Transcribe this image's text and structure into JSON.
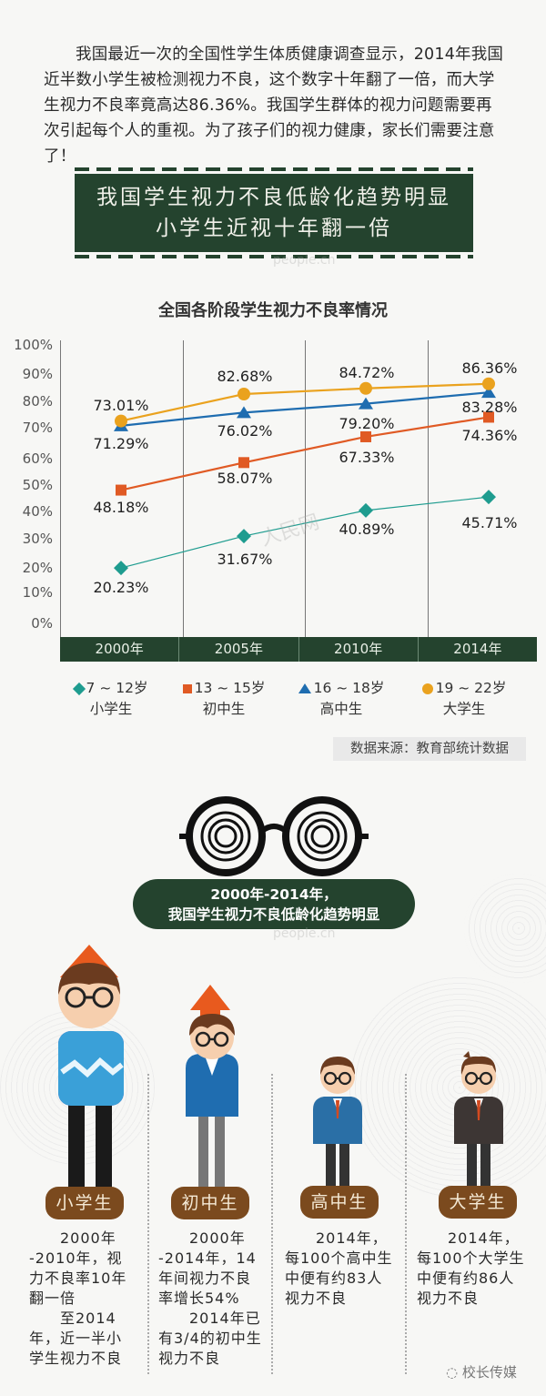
{
  "intro": {
    "text": "我国最近一次的全国性学生体质健康调查显示，2014年我国近半数小学生被检测视力不良，这个数字十年翻了一倍，而大学生视力不良率竟高达86.36%。我国学生群体的视力问题需要再次引起每个人的重视。为了孩子们的视力健康，家长们需要注意了！"
  },
  "banner": {
    "line1": "我国学生视力不良低龄化趋势明显",
    "line2": "小学生近视十年翻一倍"
  },
  "chart_data": {
    "type": "line",
    "title": "全国各阶段学生视力不良率情况",
    "xlabel": "",
    "ylabel": "",
    "categories": [
      "2000年",
      "2005年",
      "2010年",
      "2014年"
    ],
    "y_ticks": [
      "100%",
      "90%",
      "80%",
      "70%",
      "60%",
      "50%",
      "40%",
      "30%",
      "20%",
      "10%",
      "0%"
    ],
    "ylim": [
      0,
      100
    ],
    "grid": "vertical lines between years",
    "legend_position": "bottom",
    "series": [
      {
        "name": "7~12岁 小学生",
        "marker": "diamond",
        "color": "#1e9c8f",
        "values": [
          20.23,
          31.67,
          40.89,
          45.71
        ],
        "labels": [
          "20.23%",
          "31.67%",
          "40.89%",
          "45.71%"
        ]
      },
      {
        "name": "13~15岁 初中生",
        "marker": "square",
        "color": "#e05a24",
        "values": [
          48.18,
          58.07,
          67.33,
          74.36
        ],
        "labels": [
          "48.18%",
          "58.07%",
          "67.33%",
          "74.36%"
        ]
      },
      {
        "name": "16~18岁 高中生",
        "marker": "triangle",
        "color": "#1f6db0",
        "values": [
          71.29,
          76.02,
          79.2,
          83.28
        ],
        "labels": [
          "71.29%",
          "76.02%",
          "79.20%",
          "83.28%"
        ]
      },
      {
        "name": "19~22岁 大学生",
        "marker": "circle",
        "color": "#eaa21e",
        "values": [
          73.01,
          82.68,
          84.72,
          86.36
        ],
        "labels": [
          "73.01%",
          "82.68%",
          "84.72%",
          "86.36%"
        ]
      }
    ],
    "source": "数据来源：教育部统计数据"
  },
  "legend": [
    {
      "age": "7 ~ 12岁",
      "group": "小学生"
    },
    {
      "age": "13 ~ 15岁",
      "group": "初中生"
    },
    {
      "age": "16 ~ 18岁",
      "group": "高中生"
    },
    {
      "age": "19 ~ 22岁",
      "group": "大学生"
    }
  ],
  "pill": {
    "line1": "2000年-2014年，",
    "line2": "我国学生视力不良低龄化趋势明显"
  },
  "stages": [
    {
      "label": "小学生",
      "text_lines": [
        "　　2000年",
        "-2010年，视",
        "力不良率10年",
        "翻一倍",
        "　　至2014",
        "年，近一半小",
        "学生视力不良"
      ]
    },
    {
      "label": "初中生",
      "text_lines": [
        "　　2000年",
        "-2014年，14",
        "年间视力不良",
        "率增长54%",
        "　　2014年已",
        "有3/4的初中生",
        "视力不良"
      ]
    },
    {
      "label": "高中生",
      "text_lines": [
        "　　2014年，",
        "每100个高中生",
        "中便有约83人",
        "视力不良"
      ]
    },
    {
      "label": "大学生",
      "text_lines": [
        "　　2014年，",
        "每100个大学生",
        "中便有约86人",
        "视力不良"
      ]
    }
  ],
  "watermarks": {
    "people": "people.cn",
    "renmin": "人民网"
  },
  "footer": {
    "account": "校长传媒"
  },
  "colors": {
    "board_green": "#24432e",
    "label_brown": "#7b4a1e",
    "arrow_orange": "#e85a1e"
  }
}
